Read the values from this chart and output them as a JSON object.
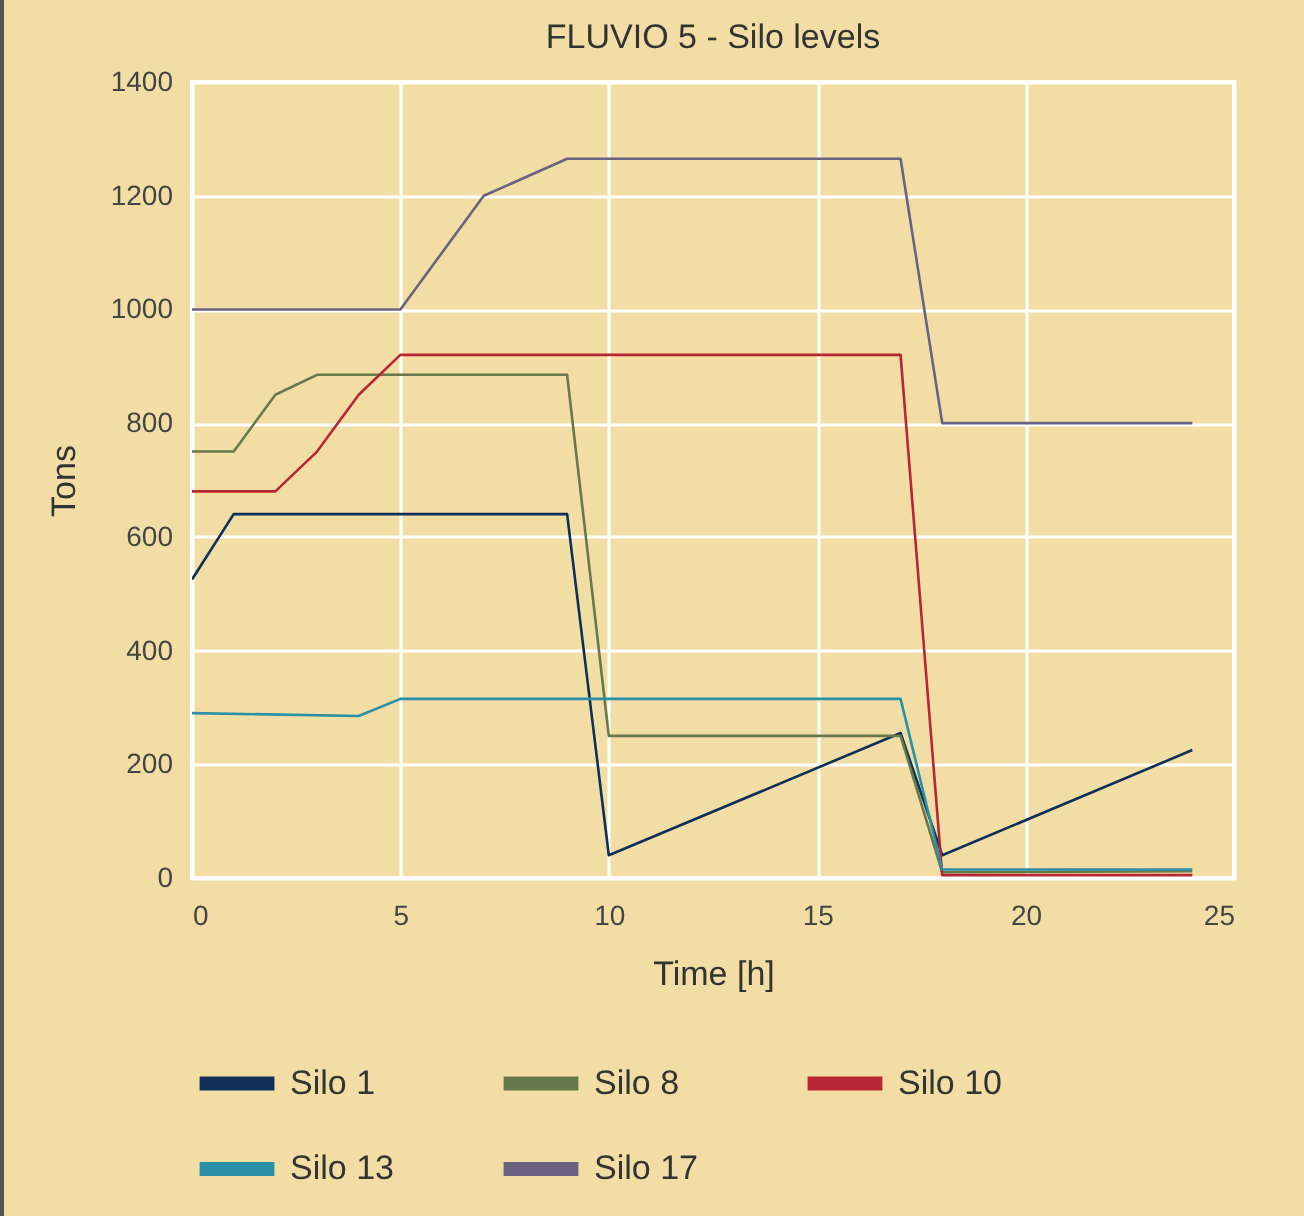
{
  "chart_data": {
    "type": "line",
    "title": "FLUVIO 5 - Silo levels",
    "xlabel": "Time [h]",
    "ylabel": "Tons",
    "xlim": [
      0,
      25
    ],
    "xticks": [
      0,
      5,
      10,
      15,
      20,
      25
    ],
    "ylim": [
      0,
      1400
    ],
    "yticks": [
      0,
      200,
      400,
      600,
      800,
      1000,
      1200,
      1400
    ],
    "grid": true,
    "legend": "bottom",
    "series": [
      {
        "name": "Silo 1",
        "color": "#0d2f5a",
        "x": [
          0,
          1,
          9,
          10,
          17,
          18,
          24
        ],
        "values": [
          525,
          640,
          640,
          40,
          255,
          40,
          225
        ]
      },
      {
        "name": "Silo 8",
        "color": "#67784a",
        "x": [
          0,
          1,
          2,
          3,
          9,
          10,
          17,
          18,
          24
        ],
        "values": [
          750,
          750,
          850,
          885,
          885,
          250,
          250,
          10,
          12
        ]
      },
      {
        "name": "Silo 10",
        "color": "#b82633",
        "x": [
          0,
          2,
          3,
          4,
          5,
          17,
          18,
          24
        ],
        "values": [
          680,
          680,
          750,
          850,
          920,
          920,
          5,
          5
        ]
      },
      {
        "name": "Silo 13",
        "color": "#2a8fa8",
        "x": [
          0,
          4,
          5,
          17,
          18,
          24
        ],
        "values": [
          290,
          285,
          315,
          315,
          15,
          15
        ]
      },
      {
        "name": "Silo 17",
        "color": "#6a6283",
        "x": [
          0,
          5,
          7,
          9,
          17,
          18,
          24
        ],
        "values": [
          1000,
          1000,
          1200,
          1265,
          1265,
          800,
          800
        ]
      }
    ]
  }
}
